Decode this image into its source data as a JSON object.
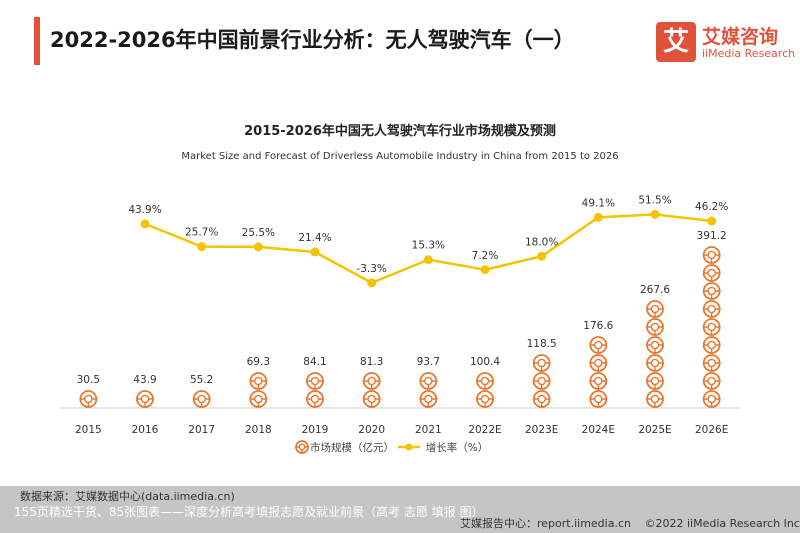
{
  "header": {
    "title": "2022-2026年中国前景行业分析：无人驾驶汽车（一）",
    "logo_mark": "艾",
    "logo_cn": "艾媒咨询",
    "logo_en": "iiMedia Research"
  },
  "chart_data": {
    "type": "bar",
    "title": "2015-2026年中国无人驾驶汽车行业市场规模及预测",
    "subtitle": "Market Size and Forecast of Driverless Automobile Industry in China from 2015 to 2026",
    "categories": [
      "2015",
      "2016",
      "2017",
      "2018",
      "2019",
      "2020",
      "2021",
      "2022E",
      "2023E",
      "2024E",
      "2025E",
      "2026E"
    ],
    "series": [
      {
        "name": "市场规模（亿元）",
        "type": "bar",
        "values": [
          30.5,
          43.9,
          55.2,
          69.3,
          84.1,
          81.3,
          93.7,
          100.4,
          118.5,
          176.6,
          267.6,
          391.2
        ]
      },
      {
        "name": "增长率（%）",
        "type": "line",
        "values": [
          null,
          43.9,
          25.7,
          25.5,
          21.4,
          -3.3,
          15.3,
          7.2,
          18.0,
          49.1,
          51.5,
          46.2
        ],
        "labels": [
          "",
          "43.9%",
          "25.7%",
          "25.5%",
          "21.4%",
          "-3.3%",
          "15.3%",
          "7.2%",
          "18.0%",
          "49.1%",
          "51.5%",
          "46.2%"
        ]
      }
    ],
    "legend": [
      "市场规模（亿元）",
      "增长率（%）"
    ],
    "legend_position": "bottom",
    "grid": false,
    "colors": {
      "bar": "#e8772e",
      "line": "#f5c400",
      "text": "#333333",
      "axis": "#cccccc"
    }
  },
  "footer": {
    "source": "数据来源：艾媒数据中心(data.iimedia.cn)",
    "overlay": "155页精选干货、85张图表——深度分析高考填报志愿及就业前景（高考 志愿 填报 图）",
    "report_center": "艾媒报告中心：report.iimedia.cn",
    "copyright": "©2022  iiMedia Research  Inc"
  }
}
